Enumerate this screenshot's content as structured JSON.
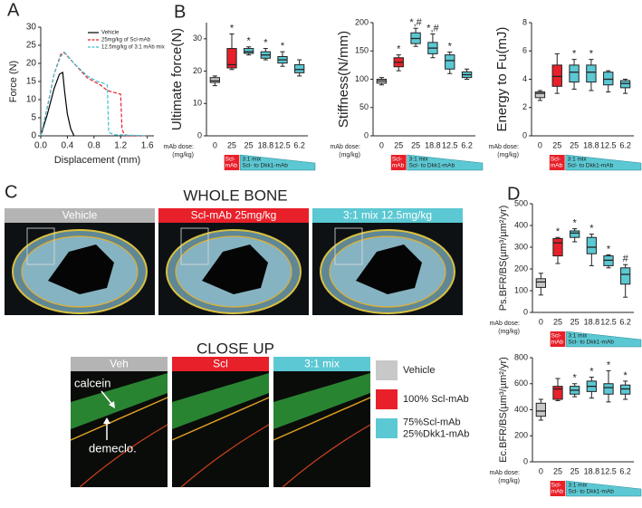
{
  "chart_data": [
    {
      "type": "line",
      "panel": "A",
      "x_label": "Displacement (mm)",
      "y_label": "Force (N)",
      "xlim": [
        0,
        1.7
      ],
      "xticks": [
        {
          "value": 0,
          "label": "0.0"
        },
        0.4,
        0.8,
        1.2,
        1.6
      ],
      "ylim": [
        0,
        30
      ],
      "yticks": [
        0,
        5,
        10,
        15,
        20,
        25,
        30
      ],
      "series": [
        {
          "name": "Vehicle",
          "color": "#000000",
          "dashed": false,
          "x": [
            0,
            0.1,
            0.2,
            0.28,
            0.33,
            0.36,
            0.4,
            0.45,
            0.5
          ],
          "values": [
            0,
            6,
            13,
            17,
            17.5,
            12,
            6,
            2,
            0
          ]
        },
        {
          "name": "25mg/kg of Scl-mAb",
          "color": "#e8202a",
          "dashed": true,
          "x": [
            0,
            0.1,
            0.2,
            0.3,
            0.35,
            0.5,
            0.7,
            0.9,
            1.0,
            1.2,
            1.22,
            1.25,
            1.3,
            1.6
          ],
          "values": [
            0,
            8,
            17,
            22.5,
            23,
            20,
            16,
            14,
            12.5,
            11.5,
            2,
            0.5,
            0,
            0
          ]
        },
        {
          "name": "12.5mg/kg of 3:1 mAb mix",
          "color": "#3cc0d0",
          "dashed": true,
          "x": [
            0,
            0.1,
            0.2,
            0.3,
            0.36,
            0.5,
            0.7,
            0.85,
            0.95,
            1.0,
            1.02,
            1.1,
            1.6
          ],
          "values": [
            0,
            8,
            17,
            22,
            23,
            20,
            16.5,
            15,
            14.5,
            14,
            1,
            0.3,
            0
          ]
        }
      ]
    },
    {
      "type": "box",
      "panel": "B",
      "y_label": "Ultimate force(N)",
      "ylim": [
        0,
        35
      ],
      "yticks": [
        0,
        10,
        20,
        30
      ],
      "categories": [
        "0",
        "25",
        "25",
        "18.8",
        "12.5",
        "6.2"
      ],
      "box_colors": [
        "#c8c8c8",
        "#e8202a",
        "#5bc8d3",
        "#5bc8d3",
        "#5bc8d3",
        "#5bc8d3"
      ],
      "min": [
        15.5,
        20.5,
        25,
        23.5,
        21.5,
        18.5
      ],
      "q1": [
        16.5,
        21,
        25.5,
        24,
        22.5,
        19.5
      ],
      "median": [
        17,
        22,
        26,
        25,
        23.5,
        20.5
      ],
      "q3": [
        18,
        27,
        27,
        26,
        24.5,
        22
      ],
      "max": [
        18.5,
        31.5,
        27.5,
        27,
        26,
        23.5
      ],
      "annotations": [
        null,
        "*",
        "*",
        "*",
        "*",
        null
      ]
    },
    {
      "type": "box",
      "y_label": "Stiffness(N/mm)",
      "ylim": [
        0,
        200
      ],
      "yticks": [
        0,
        50,
        100,
        150,
        200
      ],
      "categories": [
        "0",
        "25",
        "25",
        "18.8",
        "12.5",
        "6.2"
      ],
      "box_colors": [
        "#c8c8c8",
        "#e8202a",
        "#5bc8d3",
        "#5bc8d3",
        "#5bc8d3",
        "#5bc8d3"
      ],
      "min": [
        90,
        115,
        158,
        138,
        110,
        100
      ],
      "q1": [
        93,
        122,
        163,
        145,
        118,
        103
      ],
      "median": [
        97,
        130,
        172,
        155,
        133,
        108
      ],
      "q3": [
        100,
        138,
        182,
        165,
        143,
        113
      ],
      "max": [
        103,
        143,
        190,
        180,
        148,
        118
      ],
      "annotations": [
        null,
        "*",
        "*,#",
        "*,#",
        "*",
        null
      ]
    },
    {
      "type": "box",
      "y_label": "Energy to Fu(mJ)",
      "ylim": [
        0,
        8
      ],
      "yticks": [
        0,
        2,
        4,
        6,
        8
      ],
      "categories": [
        "0",
        "25",
        "25",
        "18.8",
        "12.5",
        "6.2"
      ],
      "box_colors": [
        "#c8c8c8",
        "#e8202a",
        "#5bc8d3",
        "#5bc8d3",
        "#5bc8d3",
        "#5bc8d3"
      ],
      "min": [
        2.5,
        3,
        3.3,
        3.2,
        3.1,
        3
      ],
      "q1": [
        2.7,
        3.5,
        3.8,
        3.8,
        3.6,
        3.4
      ],
      "median": [
        3,
        4.2,
        4.5,
        4.5,
        4,
        3.7
      ],
      "q3": [
        3.1,
        5,
        5,
        5,
        4.5,
        3.9
      ],
      "max": [
        3.2,
        5.8,
        5.4,
        5.4,
        4.6,
        4
      ],
      "annotations": [
        null,
        null,
        "*",
        "*",
        null,
        null
      ]
    },
    {
      "type": "box",
      "panel": "D",
      "y_label": "Ps.BFR/BS(µm³/µm²/yr)",
      "ylim": [
        0,
        500
      ],
      "yticks": [
        0,
        100,
        200,
        300,
        400,
        500
      ],
      "categories": [
        "0",
        "25",
        "25",
        "18.8",
        "12.5",
        "6.2"
      ],
      "box_colors": [
        "#c8c8c8",
        "#e8202a",
        "#5bc8d3",
        "#5bc8d3",
        "#5bc8d3",
        "#5bc8d3"
      ],
      "min": [
        80,
        225,
        325,
        215,
        205,
        70
      ],
      "q1": [
        115,
        260,
        345,
        270,
        215,
        130
      ],
      "median": [
        140,
        320,
        365,
        300,
        240,
        175
      ],
      "q3": [
        155,
        340,
        375,
        345,
        260,
        205
      ],
      "max": [
        180,
        345,
        385,
        360,
        265,
        220
      ],
      "annotations": [
        null,
        "*",
        "*",
        "*",
        "*",
        "#"
      ]
    },
    {
      "type": "box",
      "y_label": "Ec.BFR/BS(µm³/µm²/yr)",
      "ylim": [
        0,
        800
      ],
      "yticks": [
        0,
        200,
        400,
        600,
        800
      ],
      "categories": [
        "0",
        "25",
        "25",
        "18.8",
        "12.5",
        "6.2"
      ],
      "box_colors": [
        "#c8c8c8",
        "#e8202a",
        "#5bc8d3",
        "#5bc8d3",
        "#5bc8d3",
        "#5bc8d3"
      ],
      "min": [
        320,
        470,
        500,
        490,
        460,
        480
      ],
      "q1": [
        350,
        480,
        520,
        540,
        520,
        520
      ],
      "median": [
        390,
        560,
        550,
        580,
        570,
        560
      ],
      "q3": [
        450,
        580,
        580,
        620,
        600,
        590
      ],
      "max": [
        480,
        640,
        600,
        650,
        700,
        620
      ],
      "annotations": [
        null,
        null,
        "*",
        "*",
        "*",
        "*"
      ]
    }
  ],
  "dose_axis_label": [
    "mAb dose:",
    "(mg/kg)"
  ],
  "dose_key": {
    "scl": [
      "Scl-",
      "mAb"
    ],
    "mix": "3:1 mix",
    "ratio": "Scl- to Dkk1-mAb"
  },
  "panel_c": {
    "panel": "C",
    "title": "WHOLE BONE",
    "closeup_title": "CLOSE UP",
    "images": [
      {
        "label": "Vehicle",
        "color": "#b4b4b4"
      },
      {
        "label": "Scl-mAb 25mg/kg",
        "color": "#e8202a"
      },
      {
        "label": "3:1 mix 12.5mg/kg",
        "color": "#5bc8d3"
      }
    ],
    "closeups": [
      {
        "label": "Veh",
        "color": "#b4b4b4"
      },
      {
        "label": "Scl",
        "color": "#e8202a"
      },
      {
        "label": "3:1 mix",
        "color": "#5bc8d3"
      }
    ],
    "annotations": [
      "calcein",
      "demeclo."
    ],
    "legend": [
      {
        "label": [
          "Vehicle"
        ],
        "color": "#c8c8c8"
      },
      {
        "label": [
          "100% Scl-mAb"
        ],
        "color": "#e8202a"
      },
      {
        "label": [
          "75%Scl-mAb",
          "25%Dkk1-mAb"
        ],
        "color": "#5bc8d3"
      }
    ]
  }
}
